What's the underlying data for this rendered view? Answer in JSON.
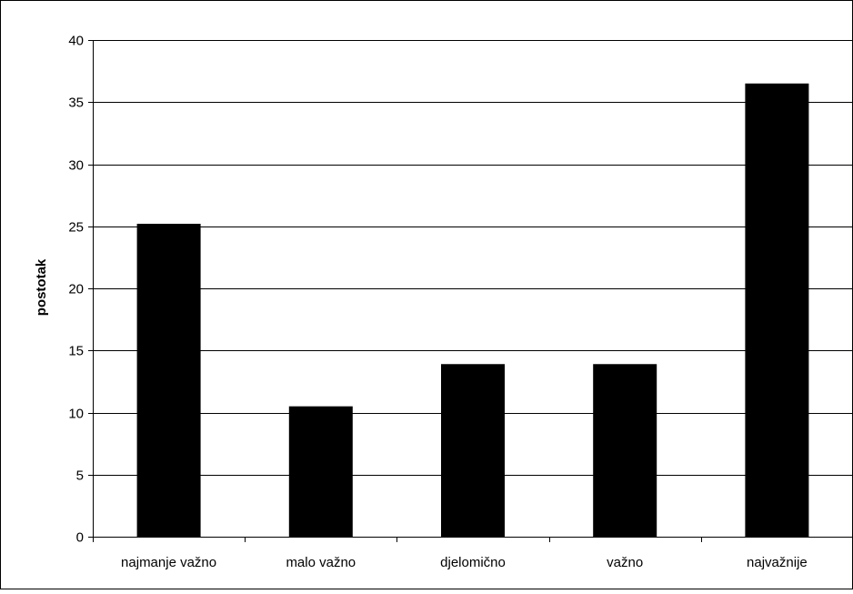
{
  "chart_data": {
    "type": "bar",
    "title": "",
    "xlabel": "",
    "ylabel": "postotak",
    "categories": [
      "najmanje važno",
      "malo važno",
      "djelomično",
      "važno",
      "najvažnije"
    ],
    "values": [
      25.2,
      10.5,
      13.9,
      13.9,
      36.5
    ],
    "ylim": [
      0,
      40
    ],
    "yticks": [
      0,
      5,
      10,
      15,
      20,
      25,
      30,
      35,
      40
    ],
    "yticklabels": [
      "0",
      "5",
      "10",
      "15",
      "20",
      "25",
      "30",
      "35",
      "40"
    ],
    "grid": true,
    "legend": "none",
    "bar_color": "#000000",
    "grid_color": "#000000",
    "background": "#ffffff"
  }
}
